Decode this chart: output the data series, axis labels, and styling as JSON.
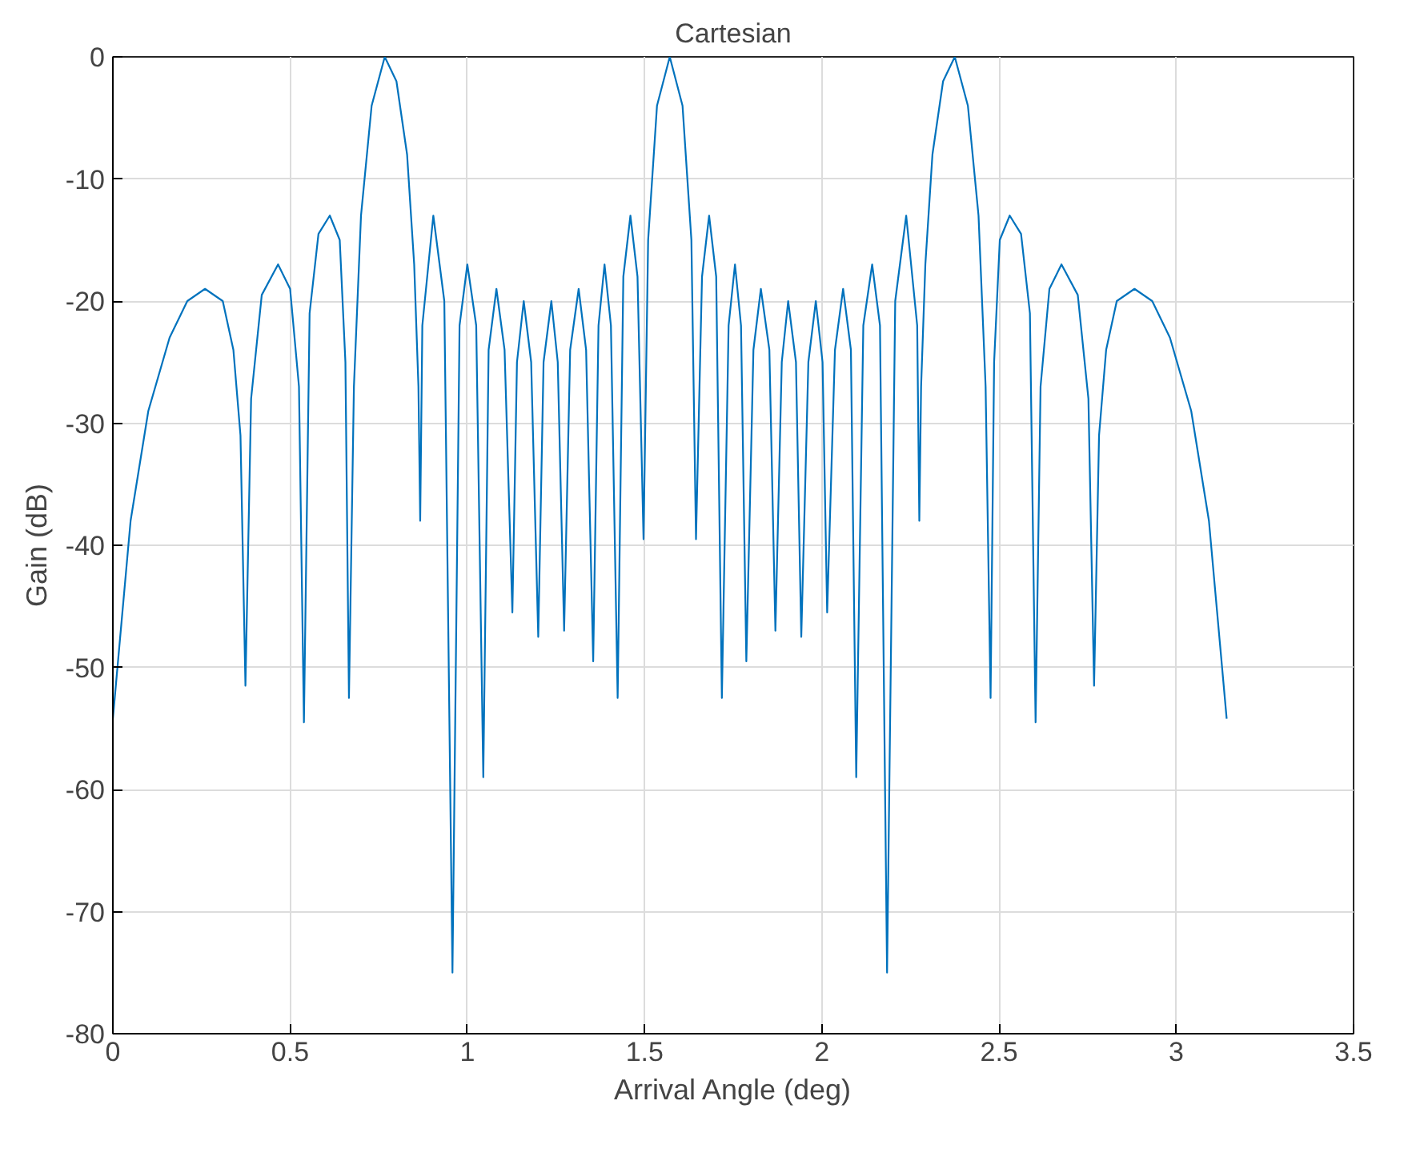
{
  "chart_data": {
    "type": "line",
    "title": "Cartesian",
    "xlabel": "Arrival Angle (deg)",
    "ylabel": "Gain (dB)",
    "xlim": [
      0,
      3.5
    ],
    "ylim": [
      -80,
      0
    ],
    "xticks": [
      0,
      0.5,
      1,
      1.5,
      2,
      2.5,
      3,
      3.5
    ],
    "yticks": [
      -80,
      -70,
      -60,
      -50,
      -40,
      -30,
      -20,
      -10,
      0
    ],
    "grid": true,
    "series": [
      {
        "color": "#0072bd",
        "x": [
          0,
          0.05,
          0.1,
          0.16,
          0.21,
          0.26,
          0.31,
          0.34,
          0.36,
          0.374,
          0.39,
          0.42,
          0.466,
          0.5,
          0.525,
          0.539,
          0.555,
          0.58,
          0.612,
          0.64,
          0.656,
          0.666,
          0.68,
          0.7,
          0.73,
          0.767,
          0.8,
          0.83,
          0.85,
          0.862,
          0.867,
          0.873,
          0.904,
          0.935,
          0.958,
          0.978,
          1.0,
          1.025,
          1.045,
          1.06,
          1.082,
          1.105,
          1.127,
          1.14,
          1.159,
          1.18,
          1.2,
          1.215,
          1.237,
          1.255,
          1.273,
          1.29,
          1.314,
          1.335,
          1.355,
          1.37,
          1.387,
          1.405,
          1.424,
          1.44,
          1.46,
          1.48,
          1.497,
          1.51,
          1.535,
          1.571,
          1.607,
          1.632,
          1.645,
          1.662,
          1.682,
          1.702,
          1.718,
          1.737,
          1.755,
          1.772,
          1.787,
          1.807,
          1.828,
          1.852,
          1.869,
          1.887,
          1.905,
          1.927,
          1.942,
          1.962,
          1.983,
          2.002,
          2.015,
          2.037,
          2.06,
          2.082,
          2.097,
          2.117,
          2.142,
          2.164,
          2.184,
          2.207,
          2.238,
          2.269,
          2.275,
          2.28,
          2.292,
          2.312,
          2.342,
          2.375,
          2.412,
          2.442,
          2.462,
          2.476,
          2.486,
          2.502,
          2.53,
          2.562,
          2.587,
          2.603,
          2.617,
          2.642,
          2.676,
          2.722,
          2.752,
          2.768,
          2.782,
          2.802,
          2.832,
          2.882,
          2.932,
          2.982,
          3.042,
          3.092,
          3.142
        ],
        "values": [
          -54.2,
          -38,
          -29,
          -23,
          -20,
          -19,
          -20,
          -24,
          -31,
          -51.5,
          -28,
          -19.5,
          -17,
          -19,
          -27,
          -54.5,
          -21,
          -14.5,
          -13,
          -15,
          -25,
          -52.5,
          -27,
          -13,
          -4,
          0,
          -2,
          -8,
          -17,
          -27,
          -38,
          -22,
          -13,
          -20,
          -75,
          -22,
          -17,
          -22,
          -59,
          -24,
          -19,
          -24,
          -45.5,
          -25,
          -20,
          -25,
          -47.5,
          -25,
          -20,
          -25,
          -47,
          -24,
          -19,
          -24,
          -49.5,
          -22,
          -17,
          -22,
          -52.5,
          -18,
          -13,
          -18,
          -39.5,
          -15,
          -4,
          0,
          -4,
          -15,
          -39.5,
          -18,
          -13,
          -18,
          -52.5,
          -22,
          -17,
          -22,
          -49.5,
          -24,
          -19,
          -24,
          -47,
          -25,
          -20,
          -25,
          -47.5,
          -25,
          -20,
          -25,
          -45.5,
          -24,
          -19,
          -24,
          -59,
          -22,
          -17,
          -22,
          -75,
          -20,
          -13,
          -22,
          -38,
          -27,
          -17,
          -8,
          -2,
          0,
          -4,
          -13,
          -27,
          -52.5,
          -25,
          -15,
          -13,
          -14.5,
          -21,
          -54.5,
          -27,
          -19,
          -17,
          -19.5,
          -28,
          -51.5,
          -31,
          -24,
          -20,
          -19,
          -20,
          -23,
          -29,
          -38,
          -54.2
        ]
      }
    ]
  }
}
